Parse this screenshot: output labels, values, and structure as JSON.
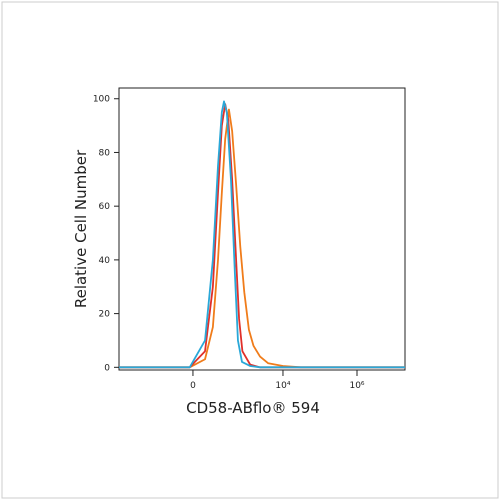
{
  "chart_data": {
    "type": "line",
    "xlabel": "CD58-ABflo® 594",
    "ylabel": "Relative Cell Number",
    "xscale": "biexponential",
    "xlim": [
      -3680,
      19800000
    ],
    "xticks": [
      0,
      {
        "value": 10000,
        "label": "10⁴"
      },
      {
        "value": 1000000,
        "label": "10⁶"
      }
    ],
    "ylim": [
      -1,
      104
    ],
    "yticks": [
      0,
      20,
      40,
      60,
      80,
      100
    ],
    "series": [
      {
        "name": "Orange",
        "color": "#f07c1a",
        "x": [
          -3680,
          -15,
          61,
          117,
          168,
          217,
          270,
          343,
          420,
          540,
          700,
          900,
          1200,
          1600,
          2400,
          4000,
          10000,
          30000,
          19800000
        ],
        "values": [
          0,
          0,
          3,
          15,
          40,
          65,
          85,
          96,
          88,
          68,
          45,
          28,
          14,
          8,
          4,
          1.5,
          0.5,
          0,
          0
        ]
      },
      {
        "name": "Red",
        "color": "#e0302a",
        "x": [
          -3680,
          -15,
          61,
          117,
          168,
          217,
          270,
          330,
          420,
          540,
          650,
          800,
          1300,
          2400,
          19800000
        ],
        "values": [
          0,
          0,
          6,
          30,
          65,
          90,
          98,
          92,
          70,
          40,
          18,
          6,
          1,
          0,
          0
        ]
      },
      {
        "name": "Blue",
        "color": "#2aa8d8",
        "x": [
          -3680,
          -15,
          61,
          117,
          168,
          217,
          250,
          300,
          390,
          500,
          605,
          780,
          1290,
          2390,
          19800000
        ],
        "values": [
          0,
          0,
          10,
          40,
          75,
          95,
          99,
          95,
          70,
          35,
          10,
          2,
          0.5,
          0,
          0
        ]
      }
    ]
  }
}
